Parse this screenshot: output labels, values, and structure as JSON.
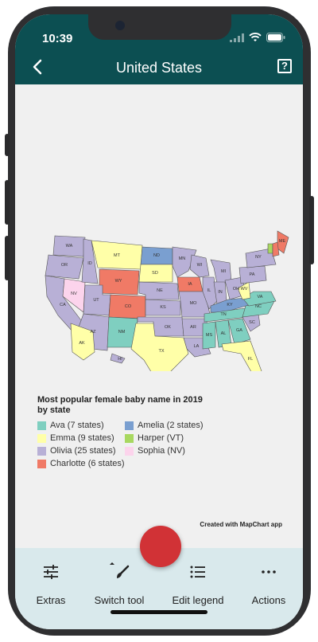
{
  "status": {
    "time": "10:39"
  },
  "header": {
    "title": "United States"
  },
  "map": {
    "states": {
      "WA": "Olivia",
      "OR": "Olivia",
      "CA": "Olivia",
      "NV": "Sophia",
      "ID": "Olivia",
      "MT": "Emma",
      "WY": "Charlotte",
      "UT": "Olivia",
      "AZ": "Olivia",
      "CO": "Charlotte",
      "NM": "Ava",
      "ND": "Amelia",
      "SD": "Emma",
      "NE": "Olivia",
      "KS": "Olivia",
      "OK": "Olivia",
      "TX": "Emma",
      "MN": "Olivia",
      "IA": "Charlotte",
      "MO": "Olivia",
      "AR": "Olivia",
      "LA": "Olivia",
      "WI": "Olivia",
      "IL": "Olivia",
      "MI": "Olivia",
      "IN": "Olivia",
      "OH": "Olivia",
      "KY": "Amelia",
      "TN": "Ava",
      "MS": "Ava",
      "AL": "Ava",
      "GA": "Ava",
      "FL": "Emma",
      "SC": "Olivia",
      "NC": "Ava",
      "VA": "Ava",
      "WV": "Emma",
      "PA": "Olivia",
      "NY": "Olivia",
      "ME": "Charlotte",
      "VT": "Harper",
      "NH": "Charlotte",
      "AK": "Emma",
      "HI": "Olivia"
    }
  },
  "legend": {
    "title": "Most popular female baby name in 2019 by state",
    "items": [
      {
        "label": "Ava (7 states)",
        "color": "#7fcfc0"
      },
      {
        "label": "Emma (9 states)",
        "color": "#ffffa8"
      },
      {
        "label": "Olivia (25 states)",
        "color": "#b8b0d6"
      },
      {
        "label": "Charlotte (6 states)",
        "color": "#f07a66"
      },
      {
        "label": "Amelia (2 states)",
        "color": "#7a9fd0"
      },
      {
        "label": "Harper (VT)",
        "color": "#a8d860"
      },
      {
        "label": "Sophia (NV)",
        "color": "#fcd4ec"
      }
    ]
  },
  "credit": "Created with MapChart app",
  "toolbar": {
    "extras": "Extras",
    "switch_tool": "Switch tool",
    "edit_legend": "Edit legend",
    "actions": "Actions"
  },
  "colors": {
    "header": "#0c4f52",
    "toolbar": "#d9e9ec",
    "fab": "#d13236"
  }
}
